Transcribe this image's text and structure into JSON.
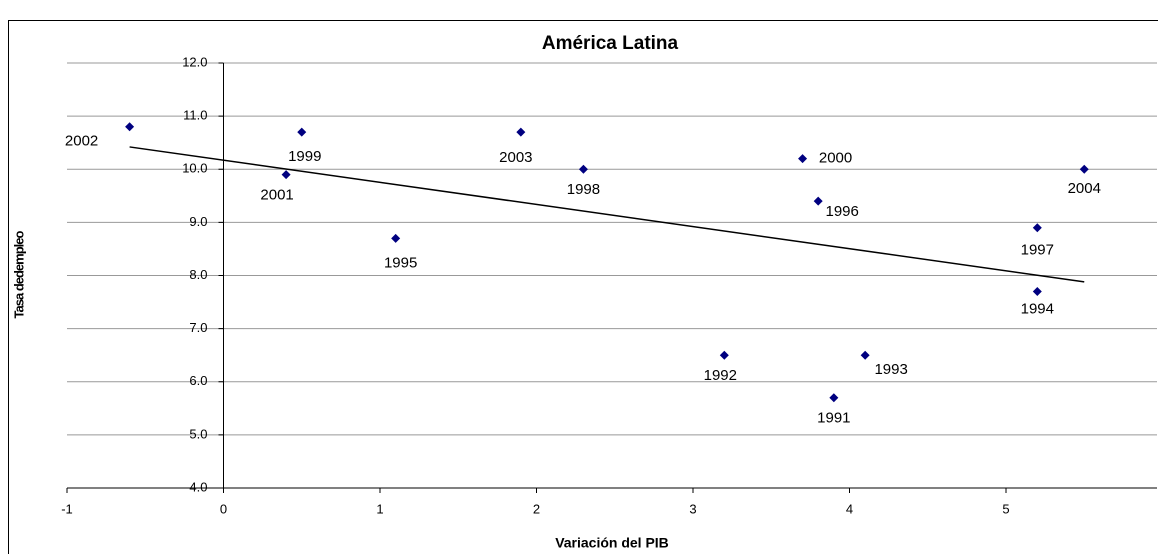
{
  "chart_data": {
    "type": "scatter",
    "title": "América Latina",
    "x_label": "Variación del PIB",
    "y_label": "Tasa dedempleo",
    "x": [
      -0.6,
      0.5,
      0.4,
      1.1,
      1.9,
      2.3,
      3.7,
      3.8,
      3.2,
      3.9,
      4.1,
      5.2,
      5.2,
      5.5
    ],
    "values": [
      10.8,
      10.7,
      9.9,
      8.7,
      10.7,
      10.0,
      10.2,
      9.4,
      6.5,
      5.7,
      6.5,
      8.9,
      7.7,
      10.0
    ],
    "point_labels": [
      "2002",
      "1999",
      "2001",
      "1995",
      "2003",
      "1998",
      "2000",
      "1996",
      "1992",
      "1991",
      "1993",
      "1997",
      "1994",
      "2004"
    ],
    "color": "#000080",
    "trendline": {
      "x": [
        -0.6,
        5.5
      ],
      "values": [
        10.42,
        7.88
      ],
      "color": "#000000"
    },
    "xlim": [
      -1,
      6
    ],
    "xticks": [
      -1,
      0,
      1,
      2,
      3,
      4,
      5,
      6
    ],
    "ylim": [
      4,
      12
    ],
    "yticks": [
      {
        "value": 4,
        "label": "4.0"
      },
      {
        "value": 5,
        "label": "5.0"
      },
      {
        "value": 6,
        "label": "6.0"
      },
      {
        "value": 7,
        "label": "7.0"
      },
      {
        "value": 8,
        "label": "8.0"
      },
      {
        "value": 9,
        "label": "9.0"
      },
      {
        "value": 10,
        "label": "10.0"
      },
      {
        "value": 11,
        "label": "11.0"
      },
      {
        "value": 12,
        "label": "12.0"
      }
    ],
    "grid": true
  }
}
